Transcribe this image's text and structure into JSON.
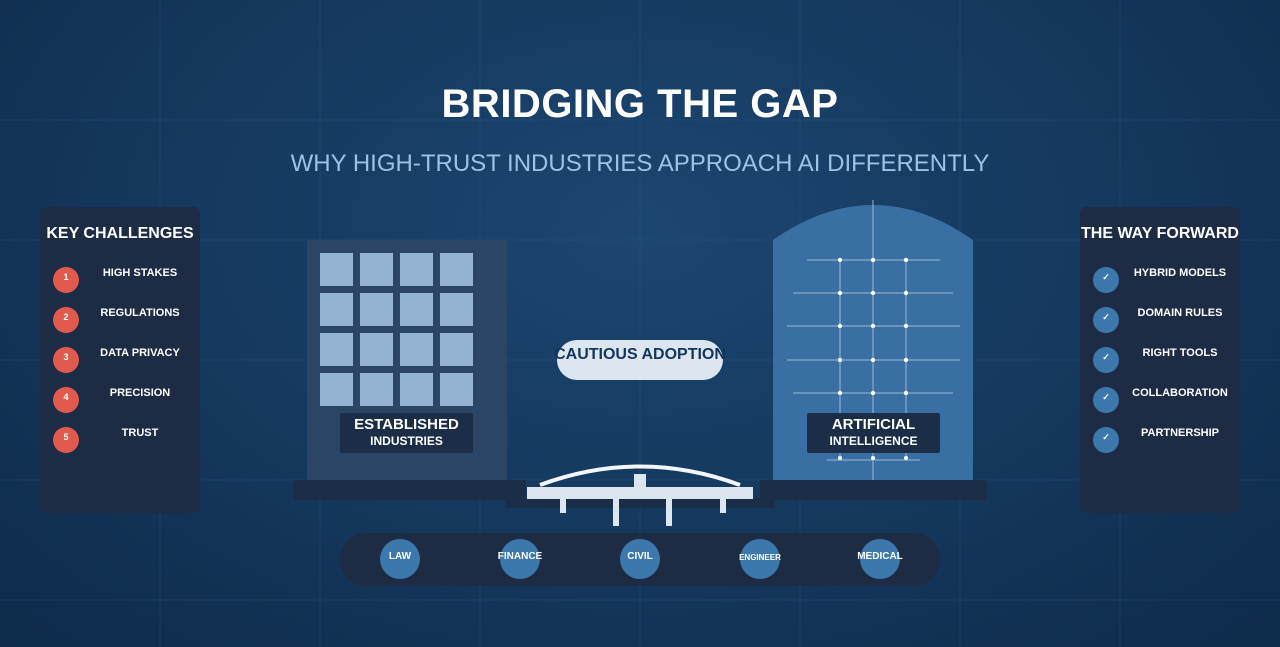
{
  "header": {
    "title": "BRIDGING THE GAP",
    "subtitle": "WHY HIGH-TRUST INDUSTRIES APPROACH AI DIFFERENTLY"
  },
  "left_panel": {
    "heading": "KEY CHALLENGES",
    "items": [
      {
        "number": "1",
        "label": "HIGH STAKES"
      },
      {
        "number": "2",
        "label": "REGULATIONS"
      },
      {
        "number": "3",
        "label": "DATA PRIVACY"
      },
      {
        "number": "4",
        "label": "PRECISION"
      },
      {
        "number": "5",
        "label": "TRUST"
      }
    ]
  },
  "right_panel": {
    "heading": "THE WAY FORWARD",
    "check": "✓",
    "items": [
      {
        "label": "HYBRID MODELS"
      },
      {
        "label": "DOMAIN RULES"
      },
      {
        "label": "RIGHT TOOLS"
      },
      {
        "label": "COLLABORATION"
      },
      {
        "label": "PARTNERSHIP"
      }
    ]
  },
  "center": {
    "pill": "CAUTIOUS ADOPTION"
  },
  "left_building": {
    "line1": "ESTABLISHED",
    "line2": "INDUSTRIES"
  },
  "right_building": {
    "line1": "ARTIFICIAL",
    "line2": "INTELLIGENCE"
  },
  "industries": [
    "LAW",
    "FINANCE",
    "CIVIL",
    "ENGINEER",
    "MEDICAL"
  ],
  "colors": {
    "background": "#163a60",
    "panel": "#1d2c44",
    "accent_red": "#e05a4e",
    "accent_blue": "#3d78ad",
    "ai_building": "#3a6fa3",
    "industry_building": "#2a4565"
  }
}
